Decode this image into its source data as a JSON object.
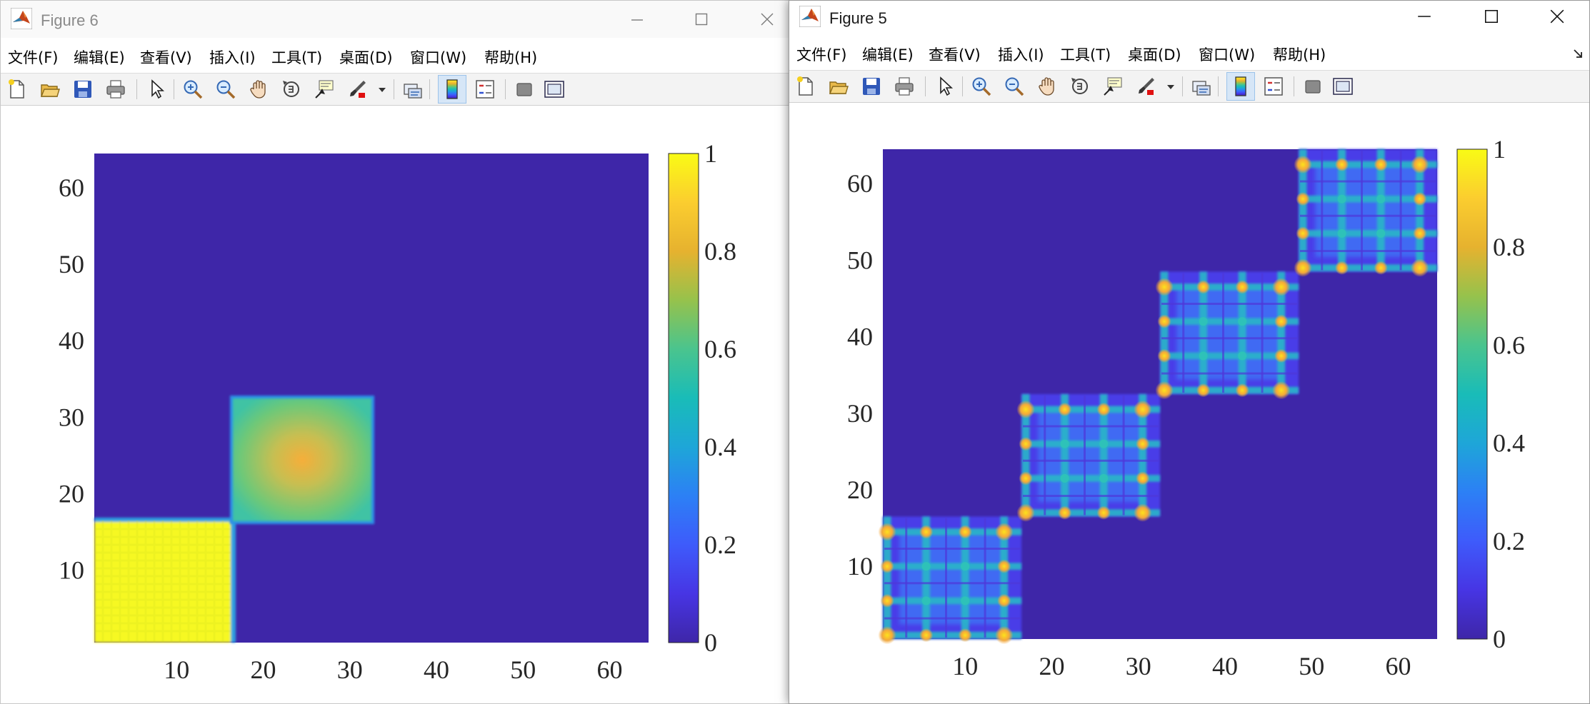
{
  "colors": {
    "background": "#3e26a8",
    "yellow": "#f9fb15",
    "cyan_band": "#2ec2b8",
    "block_fill": "#3e6cf2",
    "block_fill_dark": "#4a3be6",
    "accent_orange": "#f7a83a",
    "window_bg": "#ffffff",
    "toolbar_bg": "#f3f3f3"
  },
  "windows": [
    {
      "id": "figure6",
      "title": "Figure 6",
      "active": false,
      "menus": [
        "文件(F)",
        "编辑(E)",
        "查看(V)",
        "插入(I)",
        "工具(T)",
        "桌面(D)",
        "窗口(W)",
        "帮助(H)"
      ],
      "xticks": [
        "10",
        "20",
        "30",
        "40",
        "50",
        "60"
      ],
      "yticks": [
        "10",
        "20",
        "30",
        "40",
        "50",
        "60"
      ],
      "colorbar_ticks": [
        "0",
        "0.2",
        "0.4",
        "0.6",
        "0.8",
        "1"
      ]
    },
    {
      "id": "figure5",
      "title": "Figure 5",
      "active": true,
      "menus": [
        "文件(F)",
        "编辑(E)",
        "查看(V)",
        "插入(I)",
        "工具(T)",
        "桌面(D)",
        "窗口(W)",
        "帮助(H)"
      ],
      "xticks": [
        "10",
        "20",
        "30",
        "40",
        "50",
        "60"
      ],
      "yticks": [
        "10",
        "20",
        "30",
        "40",
        "50",
        "60"
      ],
      "colorbar_ticks": [
        "0",
        "0.2",
        "0.4",
        "0.6",
        "0.8",
        "1"
      ]
    }
  ],
  "toolbar_icons": [
    "new-figure-icon",
    "open-file-icon",
    "save-icon",
    "print-icon",
    "select-pointer-icon",
    "zoom-in-icon",
    "zoom-out-icon",
    "pan-hand-icon",
    "rotate-3d-icon",
    "data-cursor-icon",
    "brush-icon",
    "brush-dropdown-icon",
    "link-plot-icon",
    "colorbar-icon",
    "legend-icon",
    "hide-plot-tools-icon",
    "show-plot-tools-icon"
  ],
  "chart_data": [
    {
      "type": "heatmap",
      "figure": "Figure 6",
      "x_range": [
        1,
        64
      ],
      "y_range": [
        1,
        64
      ],
      "xticks": [
        10,
        20,
        30,
        40,
        50,
        60
      ],
      "yticks": [
        10,
        20,
        30,
        40,
        50,
        60
      ],
      "color_limits": [
        0,
        1
      ],
      "colormap": "parula",
      "colorbar_ticks": [
        0,
        0.2,
        0.4,
        0.6,
        0.8,
        1
      ],
      "background_value": 0.02,
      "blocks": [
        {
          "x_range": [
            1,
            16
          ],
          "y_range": [
            1,
            16
          ],
          "value": 0.97
        },
        {
          "x_range": [
            17,
            32
          ],
          "y_range": [
            17,
            32
          ],
          "value_edge": 0.55,
          "value_center": 0.8
        }
      ]
    },
    {
      "type": "heatmap",
      "figure": "Figure 5",
      "x_range": [
        1,
        64
      ],
      "y_range": [
        1,
        64
      ],
      "xticks": [
        10,
        20,
        30,
        40,
        50,
        60
      ],
      "yticks": [
        10,
        20,
        30,
        40,
        50,
        60
      ],
      "color_limits": [
        0,
        1
      ],
      "colormap": "parula",
      "colorbar_ticks": [
        0,
        0.2,
        0.4,
        0.6,
        0.8,
        1
      ],
      "background_value": 0.02,
      "blocks": [
        {
          "x_range": [
            1,
            16
          ],
          "y_range": [
            1,
            16
          ],
          "value_fill": 0.2,
          "value_bands": 0.45,
          "value_peaks": 0.85
        },
        {
          "x_range": [
            17,
            32
          ],
          "y_range": [
            17,
            32
          ],
          "value_fill": 0.2,
          "value_bands": 0.45,
          "value_peaks": 0.85
        },
        {
          "x_range": [
            33,
            48
          ],
          "y_range": [
            33,
            48
          ],
          "value_fill": 0.2,
          "value_bands": 0.45,
          "value_peaks": 0.85
        },
        {
          "x_range": [
            49,
            64
          ],
          "y_range": [
            49,
            64
          ],
          "value_fill": 0.2,
          "value_bands": 0.45,
          "value_peaks": 0.85
        }
      ]
    }
  ]
}
